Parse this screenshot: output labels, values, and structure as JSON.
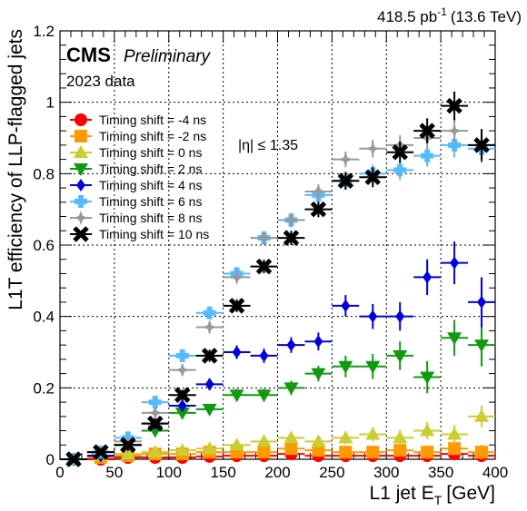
{
  "chart_data": {
    "type": "scatter",
    "lumi": "418.5 pb",
    "lumi_exponent": "-1",
    "energy": "(13.6 TeV)",
    "experiment": "CMS",
    "status": "Preliminary",
    "dataset": "2023 data",
    "annotation": "|η| ≤ 1.35",
    "xlabel_main": "L1 jet E",
    "xlabel_sub": "T",
    "xlabel_unit": "[GeV]",
    "ylabel": "L1T efficiency of LLP-flagged jets",
    "xlim": [
      0,
      400
    ],
    "ylim": [
      0,
      1.2
    ],
    "grid": true,
    "legend_position": "top-left",
    "x_ticks": [
      0,
      50,
      100,
      150,
      200,
      250,
      300,
      350,
      400
    ],
    "y_ticks": [
      0,
      0.2,
      0.4,
      0.6,
      0.8,
      1,
      1.2
    ],
    "x_tick_labels": [
      "0",
      "50",
      "100",
      "150",
      "200",
      "250",
      "300",
      "350",
      "400"
    ],
    "y_tick_labels": [
      "0",
      "0.2",
      "0.4",
      "0.6",
      "0.8",
      "1",
      "1.2"
    ],
    "x": [
      12.5,
      37.5,
      62.5,
      87.5,
      112.5,
      137.5,
      162.5,
      187.5,
      212.5,
      237.5,
      262.5,
      287.5,
      312.5,
      337.5,
      362.5,
      387.5
    ],
    "x_halfwidth": 12.5,
    "series": [
      {
        "name": "Timing shift = -4 ns",
        "color": "#ff0000",
        "marker": "circle",
        "values": [
          0.0,
          0.0,
          0.005,
          0.005,
          0.005,
          0.008,
          0.01,
          0.01,
          0.015,
          0.01,
          0.01,
          0.01,
          0.01,
          0.01,
          0.015,
          0.01
        ],
        "errors": [
          0.005,
          0.005,
          0.005,
          0.005,
          0.005,
          0.005,
          0.006,
          0.007,
          0.008,
          0.008,
          0.009,
          0.01,
          0.011,
          0.012,
          0.013,
          0.014
        ]
      },
      {
        "name": "Timing shift = -2 ns",
        "color": "#ff9900",
        "marker": "square",
        "values": [
          0.0,
          0.005,
          0.01,
          0.015,
          0.015,
          0.02,
          0.02,
          0.02,
          0.03,
          0.025,
          0.02,
          0.02,
          0.025,
          0.02,
          0.03,
          0.02
        ],
        "errors": [
          0.005,
          0.005,
          0.006,
          0.007,
          0.007,
          0.008,
          0.009,
          0.01,
          0.012,
          0.012,
          0.013,
          0.014,
          0.015,
          0.016,
          0.018,
          0.02
        ]
      },
      {
        "name": "Timing shift = 0 ns",
        "color": "#cccc33",
        "marker": "triangle-up",
        "values": [
          0.0,
          0.01,
          0.015,
          0.02,
          0.025,
          0.03,
          0.04,
          0.05,
          0.06,
          0.05,
          0.06,
          0.07,
          0.06,
          0.08,
          0.07,
          0.12
        ],
        "errors": [
          0.005,
          0.006,
          0.007,
          0.008,
          0.009,
          0.01,
          0.012,
          0.014,
          0.016,
          0.017,
          0.018,
          0.02,
          0.022,
          0.024,
          0.026,
          0.03
        ]
      },
      {
        "name": "Timing shift = 2 ns",
        "color": "#119911",
        "marker": "triangle-down",
        "values": [
          0.0,
          0.01,
          0.04,
          0.08,
          0.13,
          0.14,
          0.18,
          0.18,
          0.2,
          0.24,
          0.26,
          0.26,
          0.29,
          0.23,
          0.34,
          0.32
        ],
        "errors": [
          0.005,
          0.007,
          0.01,
          0.012,
          0.014,
          0.015,
          0.017,
          0.018,
          0.02,
          0.022,
          0.03,
          0.035,
          0.04,
          0.045,
          0.05,
          0.06
        ]
      },
      {
        "name": "Timing shift = 4 ns",
        "color": "#0000dd",
        "marker": "diamond",
        "values": [
          0.0,
          0.01,
          0.04,
          0.1,
          0.15,
          0.21,
          0.3,
          0.29,
          0.32,
          0.33,
          0.43,
          0.4,
          0.4,
          0.51,
          0.55,
          0.44
        ],
        "errors": [
          0.005,
          0.007,
          0.01,
          0.013,
          0.015,
          0.017,
          0.019,
          0.02,
          0.022,
          0.025,
          0.03,
          0.035,
          0.04,
          0.05,
          0.06,
          0.07
        ]
      },
      {
        "name": "Timing shift = 6 ns",
        "color": "#55bbff",
        "marker": "cross",
        "values": [
          0.0,
          0.02,
          0.06,
          0.16,
          0.29,
          0.41,
          0.52,
          0.62,
          0.67,
          0.74,
          0.78,
          0.8,
          0.81,
          0.85,
          0.88,
          0.87
        ],
        "errors": [
          0.005,
          0.008,
          0.01,
          0.013,
          0.015,
          0.017,
          0.018,
          0.019,
          0.02,
          0.02,
          0.022,
          0.025,
          0.028,
          0.03,
          0.035,
          0.04
        ]
      },
      {
        "name": "Timing shift = 8 ns",
        "color": "#999999",
        "marker": "star",
        "values": [
          0.0,
          0.02,
          0.05,
          0.13,
          0.25,
          0.37,
          0.51,
          0.62,
          0.67,
          0.75,
          0.84,
          0.87,
          0.88,
          0.9,
          0.92,
          0.88
        ],
        "errors": [
          0.005,
          0.008,
          0.01,
          0.013,
          0.015,
          0.017,
          0.018,
          0.019,
          0.02,
          0.02,
          0.022,
          0.025,
          0.028,
          0.03,
          0.035,
          0.04
        ]
      },
      {
        "name": "Timing shift = 10 ns",
        "color": "#000000",
        "marker": "x",
        "values": [
          0.0,
          0.02,
          0.04,
          0.1,
          0.18,
          0.29,
          0.43,
          0.54,
          0.62,
          0.7,
          0.78,
          0.79,
          0.86,
          0.92,
          0.99,
          0.88
        ],
        "errors": [
          0.005,
          0.008,
          0.01,
          0.013,
          0.015,
          0.017,
          0.018,
          0.019,
          0.02,
          0.022,
          0.025,
          0.028,
          0.03,
          0.035,
          0.04,
          0.045
        ]
      }
    ]
  }
}
